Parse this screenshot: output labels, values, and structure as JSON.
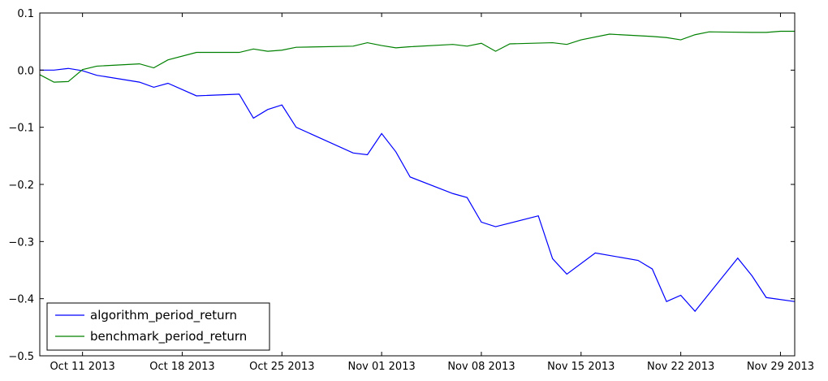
{
  "chart_data": {
    "type": "line",
    "title": "",
    "xlabel": "",
    "ylabel": "",
    "x_range": [
      "2013-10-08",
      "2013-11-30"
    ],
    "ylim": [
      -0.5,
      0.1
    ],
    "y_ticks": [
      0.1,
      0.0,
      -0.1,
      -0.2,
      -0.3,
      -0.4,
      -0.5
    ],
    "y_tick_labels": [
      "0.1",
      "0.0",
      "−0.1",
      "−0.2",
      "−0.3",
      "−0.4",
      "−0.5"
    ],
    "x_ticks": [
      "2013-10-11",
      "2013-10-18",
      "2013-10-25",
      "2013-11-01",
      "2013-11-08",
      "2013-11-15",
      "2013-11-22",
      "2013-11-29"
    ],
    "x_tick_labels": [
      "Oct 11 2013",
      "Oct 18 2013",
      "Oct 25 2013",
      "Nov 01 2013",
      "Nov 08 2013",
      "Nov 15 2013",
      "Nov 22 2013",
      "Nov 29 2013"
    ],
    "grid": false,
    "legend_position": "lower-left",
    "series": [
      {
        "name": "algorithm_period_return",
        "color": "#0000ff",
        "points": [
          [
            "2013-10-08",
            0.0
          ],
          [
            "2013-10-09",
            0.0
          ],
          [
            "2013-10-10",
            0.003
          ],
          [
            "2013-10-11",
            -0.001
          ],
          [
            "2013-10-12",
            -0.009
          ],
          [
            "2013-10-15",
            -0.021
          ],
          [
            "2013-10-16",
            -0.03
          ],
          [
            "2013-10-17",
            -0.023
          ],
          [
            "2013-10-19",
            -0.045
          ],
          [
            "2013-10-22",
            -0.042
          ],
          [
            "2013-10-23",
            -0.084
          ],
          [
            "2013-10-24",
            -0.069
          ],
          [
            "2013-10-25",
            -0.061
          ],
          [
            "2013-10-26",
            -0.1
          ],
          [
            "2013-10-30",
            -0.145
          ],
          [
            "2013-10-31",
            -0.148
          ],
          [
            "2013-11-01",
            -0.111
          ],
          [
            "2013-11-02",
            -0.143
          ],
          [
            "2013-11-03",
            -0.187
          ],
          [
            "2013-11-06",
            -0.216
          ],
          [
            "2013-11-07",
            -0.223
          ],
          [
            "2013-11-08",
            -0.266
          ],
          [
            "2013-11-09",
            -0.274
          ],
          [
            "2013-11-12",
            -0.255
          ],
          [
            "2013-11-13",
            -0.33
          ],
          [
            "2013-11-14",
            -0.357
          ],
          [
            "2013-11-16",
            -0.32
          ],
          [
            "2013-11-19",
            -0.333
          ],
          [
            "2013-11-20",
            -0.348
          ],
          [
            "2013-11-21",
            -0.405
          ],
          [
            "2013-11-22",
            -0.394
          ],
          [
            "2013-11-23",
            -0.422
          ],
          [
            "2013-11-26",
            -0.329
          ],
          [
            "2013-11-27",
            -0.36
          ],
          [
            "2013-11-28",
            -0.398
          ],
          [
            "2013-11-30",
            -0.405
          ]
        ]
      },
      {
        "name": "benchmark_period_return",
        "color": "#008000",
        "points": [
          [
            "2013-10-08",
            -0.008
          ],
          [
            "2013-10-09",
            -0.021
          ],
          [
            "2013-10-10",
            -0.02
          ],
          [
            "2013-10-11",
            0.001
          ],
          [
            "2013-10-12",
            0.007
          ],
          [
            "2013-10-15",
            0.011
          ],
          [
            "2013-10-16",
            0.004
          ],
          [
            "2013-10-17",
            0.018
          ],
          [
            "2013-10-19",
            0.031
          ],
          [
            "2013-10-22",
            0.031
          ],
          [
            "2013-10-23",
            0.037
          ],
          [
            "2013-10-24",
            0.033
          ],
          [
            "2013-10-25",
            0.035
          ],
          [
            "2013-10-26",
            0.04
          ],
          [
            "2013-10-30",
            0.042
          ],
          [
            "2013-10-31",
            0.048
          ],
          [
            "2013-11-01",
            0.043
          ],
          [
            "2013-11-02",
            0.039
          ],
          [
            "2013-11-03",
            0.041
          ],
          [
            "2013-11-06",
            0.045
          ],
          [
            "2013-11-07",
            0.042
          ],
          [
            "2013-11-08",
            0.047
          ],
          [
            "2013-11-09",
            0.033
          ],
          [
            "2013-11-10",
            0.046
          ],
          [
            "2013-11-13",
            0.048
          ],
          [
            "2013-11-14",
            0.045
          ],
          [
            "2013-11-15",
            0.053
          ],
          [
            "2013-11-17",
            0.063
          ],
          [
            "2013-11-20",
            0.059
          ],
          [
            "2013-11-21",
            0.057
          ],
          [
            "2013-11-22",
            0.053
          ],
          [
            "2013-11-23",
            0.062
          ],
          [
            "2013-11-24",
            0.067
          ],
          [
            "2013-11-27",
            0.066
          ],
          [
            "2013-11-28",
            0.066
          ],
          [
            "2013-11-29",
            0.068
          ],
          [
            "2013-11-30",
            0.068
          ]
        ]
      }
    ]
  }
}
